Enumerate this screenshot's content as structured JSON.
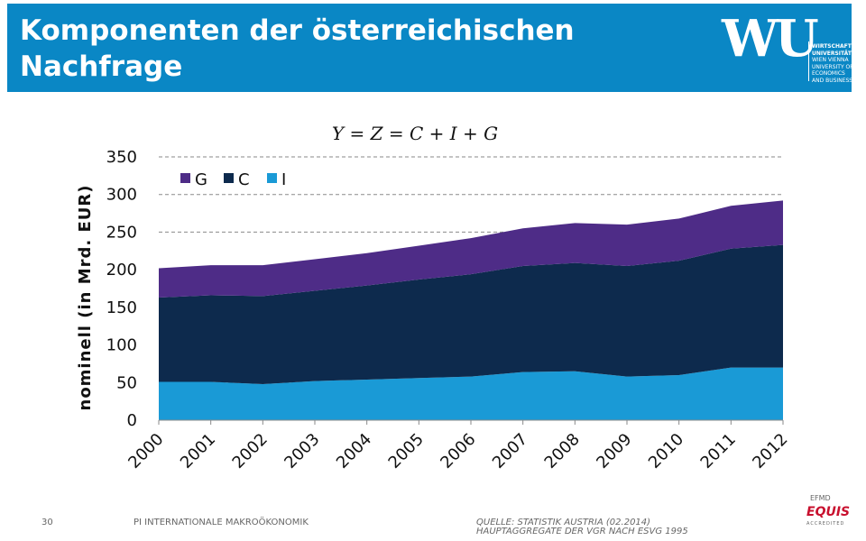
{
  "header": {
    "title_line1": "Komponenten der österreichischen",
    "title_line2": "Nachfrage",
    "logo_mark": "WU",
    "logo_lines": [
      "WIRTSCHAFTS",
      "UNIVERSITÄT",
      "WIEN VIENNA",
      "UNIVERSITY OF",
      "ECONOMICS",
      "AND BUSINESS"
    ]
  },
  "formula": "Y = Z = C + I + G",
  "chart_data": {
    "type": "area",
    "stacked": true,
    "categories": [
      "2000",
      "2001",
      "2002",
      "2003",
      "2004",
      "2005",
      "2006",
      "2007",
      "2008",
      "2009",
      "2010",
      "2011",
      "2012"
    ],
    "series": [
      {
        "name": "I",
        "color": "#1a9ad6",
        "values": [
          51,
          51,
          48,
          52,
          54,
          56,
          58,
          64,
          65,
          58,
          60,
          70,
          70
        ]
      },
      {
        "name": "C",
        "color": "#0d2a4d",
        "values": [
          112,
          115,
          117,
          120,
          125,
          131,
          136,
          141,
          144,
          147,
          152,
          158,
          163
        ]
      },
      {
        "name": "G",
        "color": "#4e2c87",
        "values": [
          39,
          40,
          41,
          42,
          43,
          45,
          48,
          50,
          53,
          55,
          56,
          57,
          59
        ]
      }
    ],
    "legend_order": [
      "G",
      "C",
      "I"
    ],
    "legend_position": "top-left",
    "ylabel": "nominell (in Mrd. EUR)",
    "xlabel": "",
    "ylim": [
      0,
      350
    ],
    "yticks": [
      "0",
      "50",
      "100",
      "150",
      "200",
      "250",
      "300",
      "350"
    ],
    "grid": true
  },
  "footer": {
    "page_number": "30",
    "course": "PI INTERNATIONALE MAKROÖKONOMIK",
    "source_line1": "QUELLE: STATISTIK AUSTRIA (02.2014)",
    "source_line2": "HAUPTAGGREGATE DER VGR NACH ESVG 1995"
  },
  "badge": {
    "top": "EFMD",
    "name": "EQUIS",
    "bottom": "ACCREDITED"
  }
}
